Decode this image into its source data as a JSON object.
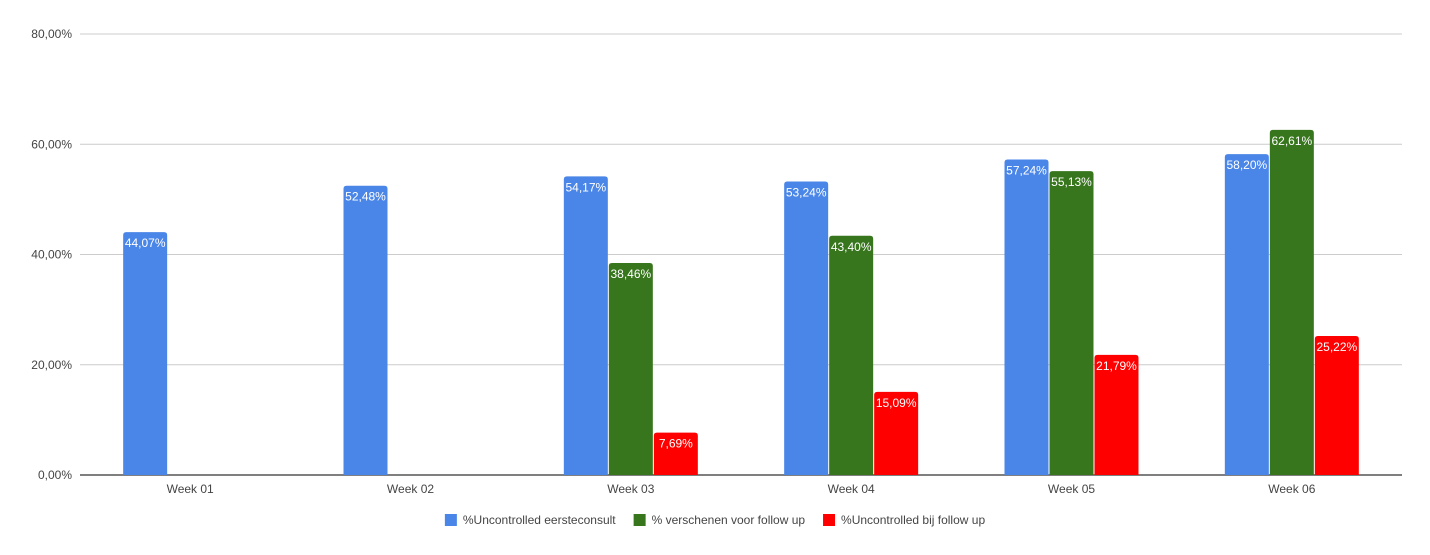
{
  "chart_data": {
    "type": "bar",
    "title": "",
    "xlabel": "",
    "ylabel": "",
    "categories": [
      "Week 01",
      "Week 02",
      "Week 03",
      "Week 04",
      "Week 05",
      "Week 06"
    ],
    "ylim": [
      0,
      80
    ],
    "yticks": [
      0,
      20,
      40,
      60,
      80
    ],
    "ytick_labels": [
      "0,00%",
      "20,00%",
      "40,00%",
      "60,00%",
      "80,00%"
    ],
    "grid": true,
    "legend_position": "bottom",
    "series": [
      {
        "name": "%Uncontrolled eersteconsult",
        "color": "#4a86e8",
        "values": [
          44.07,
          52.48,
          54.17,
          53.24,
          57.24,
          58.2
        ],
        "labels": [
          "44,07%",
          "52,48%",
          "54,17%",
          "53,24%",
          "57,24%",
          "58,20%"
        ]
      },
      {
        "name": "% verschenen voor follow up",
        "color": "#38761d",
        "values": [
          null,
          null,
          38.46,
          43.4,
          55.13,
          62.61
        ],
        "labels": [
          "",
          "",
          "38,46%",
          "43,40%",
          "55,13%",
          "62,61%"
        ]
      },
      {
        "name": "%Uncontrolled bij follow up",
        "color": "#ff0000",
        "values": [
          null,
          null,
          7.69,
          15.09,
          21.79,
          25.22
        ],
        "labels": [
          "",
          "",
          "7,69%",
          "15,09%",
          "21,79%",
          "25,22%"
        ]
      }
    ]
  }
}
